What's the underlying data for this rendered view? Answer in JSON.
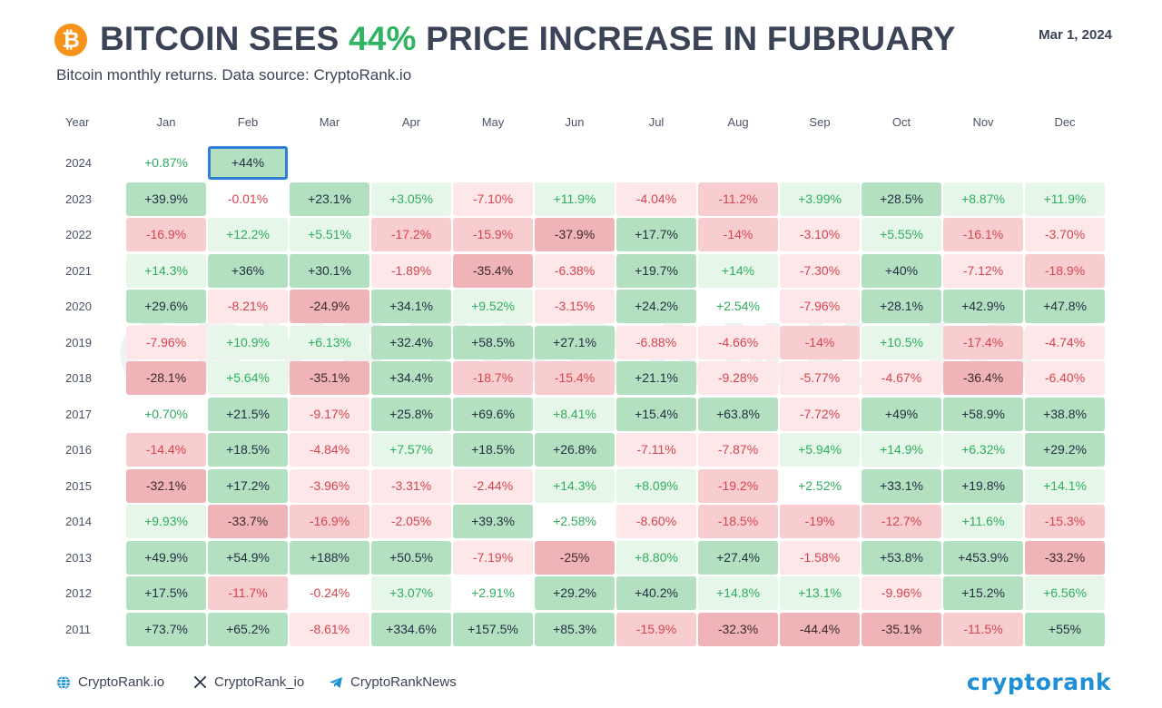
{
  "header": {
    "title_before": "BITCOIN SEES ",
    "title_pct": "44%",
    "title_after": " PRICE INCREASE IN FUBRUARY",
    "date": "Mar 1, 2024",
    "subtitle": "Bitcoin monthly returns. Data source: CryptoRank.io",
    "logo_icon": "bitcoin-icon",
    "logo_glyph": "₿"
  },
  "watermark": "CRYPTORANK.IO",
  "colors": {
    "pos_text": "#2fae5e",
    "neg_text": "#d6454f",
    "pos_light": "#e6f7ea",
    "pos_mid": "#c5ebd2",
    "pos_strong": "#b4e0c2",
    "neg_light": "#fde7e8",
    "neg_mid": "#f7cdd0",
    "neg_strong": "#efb3b8",
    "highlight_border": "#2f7fd8",
    "title_accent": "#30b463",
    "brand": "#1f8fd6"
  },
  "chart_data": {
    "type": "table",
    "title": "BITCOIN SEES 44% PRICE INCREASE IN FUBRUARY",
    "subtitle": "Bitcoin monthly returns. Data source: CryptoRank.io",
    "year_label": "Year",
    "columns": [
      "Jan",
      "Feb",
      "Mar",
      "Apr",
      "May",
      "Jun",
      "Jul",
      "Aug",
      "Sep",
      "Oct",
      "Nov",
      "Dec"
    ],
    "highlight": {
      "year": "2024",
      "month": "Feb"
    },
    "rows": [
      {
        "year": "2024",
        "values": [
          "+0.87%",
          "+44%",
          "",
          "",
          "",
          "",
          "",
          "",
          "",
          "",
          "",
          ""
        ]
      },
      {
        "year": "2023",
        "values": [
          "+39.9%",
          "-0.01%",
          "+23.1%",
          "+3.05%",
          "-7.10%",
          "+11.9%",
          "-4.04%",
          "-11.2%",
          "+3.99%",
          "+28.5%",
          "+8.87%",
          "+11.9%"
        ]
      },
      {
        "year": "2022",
        "values": [
          "-16.9%",
          "+12.2%",
          "+5.51%",
          "-17.2%",
          "-15.9%",
          "-37.9%",
          "+17.7%",
          "-14%",
          "-3.10%",
          "+5.55%",
          "-16.1%",
          "-3.70%"
        ]
      },
      {
        "year": "2021",
        "values": [
          "+14.3%",
          "+36%",
          "+30.1%",
          "-1.89%",
          "-35.4%",
          "-6.38%",
          "+19.7%",
          "+14%",
          "-7.30%",
          "+40%",
          "-7.12%",
          "-18.9%"
        ]
      },
      {
        "year": "2020",
        "values": [
          "+29.6%",
          "-8.21%",
          "-24.9%",
          "+34.1%",
          "+9.52%",
          "-3.15%",
          "+24.2%",
          "+2.54%",
          "-7.96%",
          "+28.1%",
          "+42.9%",
          "+47.8%"
        ]
      },
      {
        "year": "2019",
        "values": [
          "-7.96%",
          "+10.9%",
          "+6.13%",
          "+32.4%",
          "+58.5%",
          "+27.1%",
          "-6.88%",
          "-4.66%",
          "-14%",
          "+10.5%",
          "-17.4%",
          "-4.74%"
        ]
      },
      {
        "year": "2018",
        "values": [
          "-28.1%",
          "+5.64%",
          "-35.1%",
          "+34.4%",
          "-18.7%",
          "-15.4%",
          "+21.1%",
          "-9.28%",
          "-5.77%",
          "-4.67%",
          "-36.4%",
          "-6.40%"
        ]
      },
      {
        "year": "2017",
        "values": [
          "+0.70%",
          "+21.5%",
          "-9.17%",
          "+25.8%",
          "+69.6%",
          "+8.41%",
          "+15.4%",
          "+63.8%",
          "-7.72%",
          "+49%",
          "+58.9%",
          "+38.8%"
        ]
      },
      {
        "year": "2016",
        "values": [
          "-14.4%",
          "+18.5%",
          "-4.84%",
          "+7.57%",
          "+18.5%",
          "+26.8%",
          "-7.11%",
          "-7.87%",
          "+5.94%",
          "+14.9%",
          "+6.32%",
          "+29.2%"
        ]
      },
      {
        "year": "2015",
        "values": [
          "-32.1%",
          "+17.2%",
          "-3.96%",
          "-3.31%",
          "-2.44%",
          "+14.3%",
          "+8.09%",
          "-19.2%",
          "+2.52%",
          "+33.1%",
          "+19.8%",
          "+14.1%"
        ]
      },
      {
        "year": "2014",
        "values": [
          "+9.93%",
          "-33.7%",
          "-16.9%",
          "-2.05%",
          "+39.3%",
          "+2.58%",
          "-8.60%",
          "-18.5%",
          "-19%",
          "-12.7%",
          "+11.6%",
          "-15.3%"
        ]
      },
      {
        "year": "2013",
        "values": [
          "+49.9%",
          "+54.9%",
          "+188%",
          "+50.5%",
          "-7.19%",
          "-25%",
          "+8.80%",
          "+27.4%",
          "-1.58%",
          "+53.8%",
          "+453.9%",
          "-33.2%"
        ]
      },
      {
        "year": "2012",
        "values": [
          "+17.5%",
          "-11.7%",
          "-0.24%",
          "+3.07%",
          "+2.91%",
          "+29.2%",
          "+40.2%",
          "+14.8%",
          "+13.1%",
          "-9.96%",
          "+15.2%",
          "+6.56%"
        ]
      },
      {
        "year": "2011",
        "values": [
          "+73.7%",
          "+65.2%",
          "-8.61%",
          "+334.6%",
          "+157.5%",
          "+85.3%",
          "-15.9%",
          "-32.3%",
          "-44.4%",
          "-35.1%",
          "-11.5%",
          "+55%"
        ]
      }
    ]
  },
  "footer": {
    "website": "CryptoRank.io",
    "website_icon": "globe-icon",
    "x_handle": "CryptoRank_io",
    "x_icon": "x-icon",
    "telegram": "CryptoRankNews",
    "telegram_icon": "telegram-icon",
    "brand": "cryptorank"
  }
}
